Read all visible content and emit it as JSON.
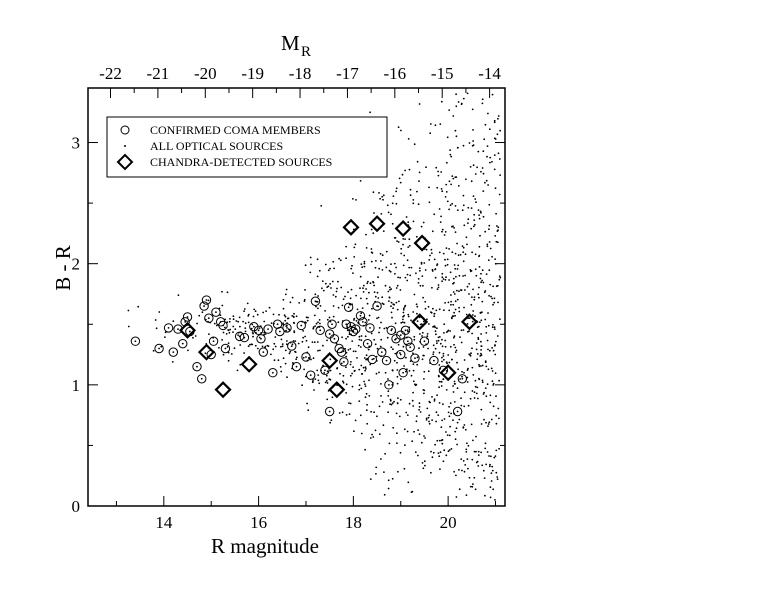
{
  "chart_data": {
    "type": "scatter",
    "xlabel": "R magnitude",
    "ylabel": "B - R",
    "top_xlabel": "M",
    "top_xlabel_sub": "R",
    "xlim": [
      12.4,
      21.2
    ],
    "ylim": [
      0,
      3.45
    ],
    "top_xlim": [
      -22.475,
      -13.675
    ],
    "x_ticks": [
      14,
      16,
      18,
      20
    ],
    "y_ticks": [
      0,
      1,
      2,
      3
    ],
    "top_ticks": [
      -22,
      -21,
      -20,
      -19,
      -18,
      -17,
      -16,
      -15,
      -14
    ],
    "legend_position": "top-left",
    "legend": [
      {
        "marker": "circle",
        "label": "CONFIRMED COMA MEMBERS"
      },
      {
        "marker": "dot",
        "label": "ALL OPTICAL SOURCES"
      },
      {
        "marker": "diamond",
        "label": "CHANDRA-DETECTED SOURCES"
      }
    ],
    "series": [
      {
        "name": "CONFIRMED COMA MEMBERS",
        "marker": "circle",
        "points": [
          [
            13.4,
            1.36
          ],
          [
            13.9,
            1.3
          ],
          [
            14.1,
            1.47
          ],
          [
            14.2,
            1.27
          ],
          [
            14.3,
            1.46
          ],
          [
            14.4,
            1.34
          ],
          [
            14.45,
            1.52
          ],
          [
            14.5,
            1.56
          ],
          [
            14.55,
            1.44
          ],
          [
            14.7,
            1.15
          ],
          [
            14.8,
            1.05
          ],
          [
            14.85,
            1.65
          ],
          [
            14.9,
            1.7
          ],
          [
            14.95,
            1.55
          ],
          [
            15.0,
            1.25
          ],
          [
            15.05,
            1.36
          ],
          [
            15.1,
            1.6
          ],
          [
            15.2,
            1.52
          ],
          [
            15.25,
            1.49
          ],
          [
            15.3,
            1.3
          ],
          [
            15.6,
            1.4
          ],
          [
            15.7,
            1.39
          ],
          [
            15.9,
            1.48
          ],
          [
            16.0,
            1.45
          ],
          [
            16.05,
            1.38
          ],
          [
            16.1,
            1.27
          ],
          [
            16.2,
            1.46
          ],
          [
            16.3,
            1.1
          ],
          [
            16.4,
            1.5
          ],
          [
            16.45,
            1.44
          ],
          [
            16.6,
            1.47
          ],
          [
            16.7,
            1.32
          ],
          [
            16.8,
            1.15
          ],
          [
            16.9,
            1.49
          ],
          [
            17.0,
            1.23
          ],
          [
            17.1,
            1.08
          ],
          [
            17.2,
            1.69
          ],
          [
            17.3,
            1.45
          ],
          [
            17.4,
            1.12
          ],
          [
            17.5,
            1.42
          ],
          [
            17.55,
            1.5
          ],
          [
            17.6,
            1.38
          ],
          [
            17.7,
            1.3
          ],
          [
            17.75,
            1.27
          ],
          [
            17.8,
            1.19
          ],
          [
            17.85,
            1.5
          ],
          [
            17.9,
            1.64
          ],
          [
            17.95,
            1.48
          ],
          [
            18.0,
            1.44
          ],
          [
            18.05,
            1.46
          ],
          [
            18.15,
            1.57
          ],
          [
            18.2,
            1.52
          ],
          [
            18.3,
            1.34
          ],
          [
            18.35,
            1.47
          ],
          [
            18.4,
            1.21
          ],
          [
            18.5,
            1.65
          ],
          [
            18.6,
            1.27
          ],
          [
            18.7,
            1.2
          ],
          [
            18.75,
            1.0
          ],
          [
            18.8,
            1.45
          ],
          [
            18.9,
            1.38
          ],
          [
            19.0,
            1.41
          ],
          [
            19.05,
            1.1
          ],
          [
            19.1,
            1.45
          ],
          [
            19.15,
            1.36
          ],
          [
            19.2,
            1.31
          ],
          [
            19.3,
            1.22
          ],
          [
            19.5,
            1.36
          ],
          [
            19.7,
            1.2
          ],
          [
            19.9,
            1.12
          ],
          [
            20.2,
            0.78
          ],
          [
            20.3,
            1.05
          ],
          [
            17.5,
            0.78
          ],
          [
            19.0,
            1.25
          ]
        ]
      },
      {
        "name": "ALL OPTICAL SOURCES",
        "marker": "dot",
        "generator": {
          "seed": 7,
          "count": 1400,
          "x_range": [
            13.0,
            21.1
          ],
          "y_range": [
            0.05,
            3.42
          ]
        }
      },
      {
        "name": "CHANDRA-DETECTED SOURCES",
        "marker": "diamond",
        "points": [
          [
            14.5,
            1.45
          ],
          [
            14.9,
            1.27
          ],
          [
            15.25,
            0.96
          ],
          [
            15.8,
            1.17
          ],
          [
            17.5,
            1.2
          ],
          [
            17.65,
            0.96
          ],
          [
            17.95,
            2.3
          ],
          [
            18.5,
            2.33
          ],
          [
            19.05,
            2.29
          ],
          [
            19.45,
            2.17
          ],
          [
            19.4,
            1.52
          ],
          [
            20.0,
            1.1
          ],
          [
            20.45,
            1.52
          ]
        ]
      }
    ]
  }
}
